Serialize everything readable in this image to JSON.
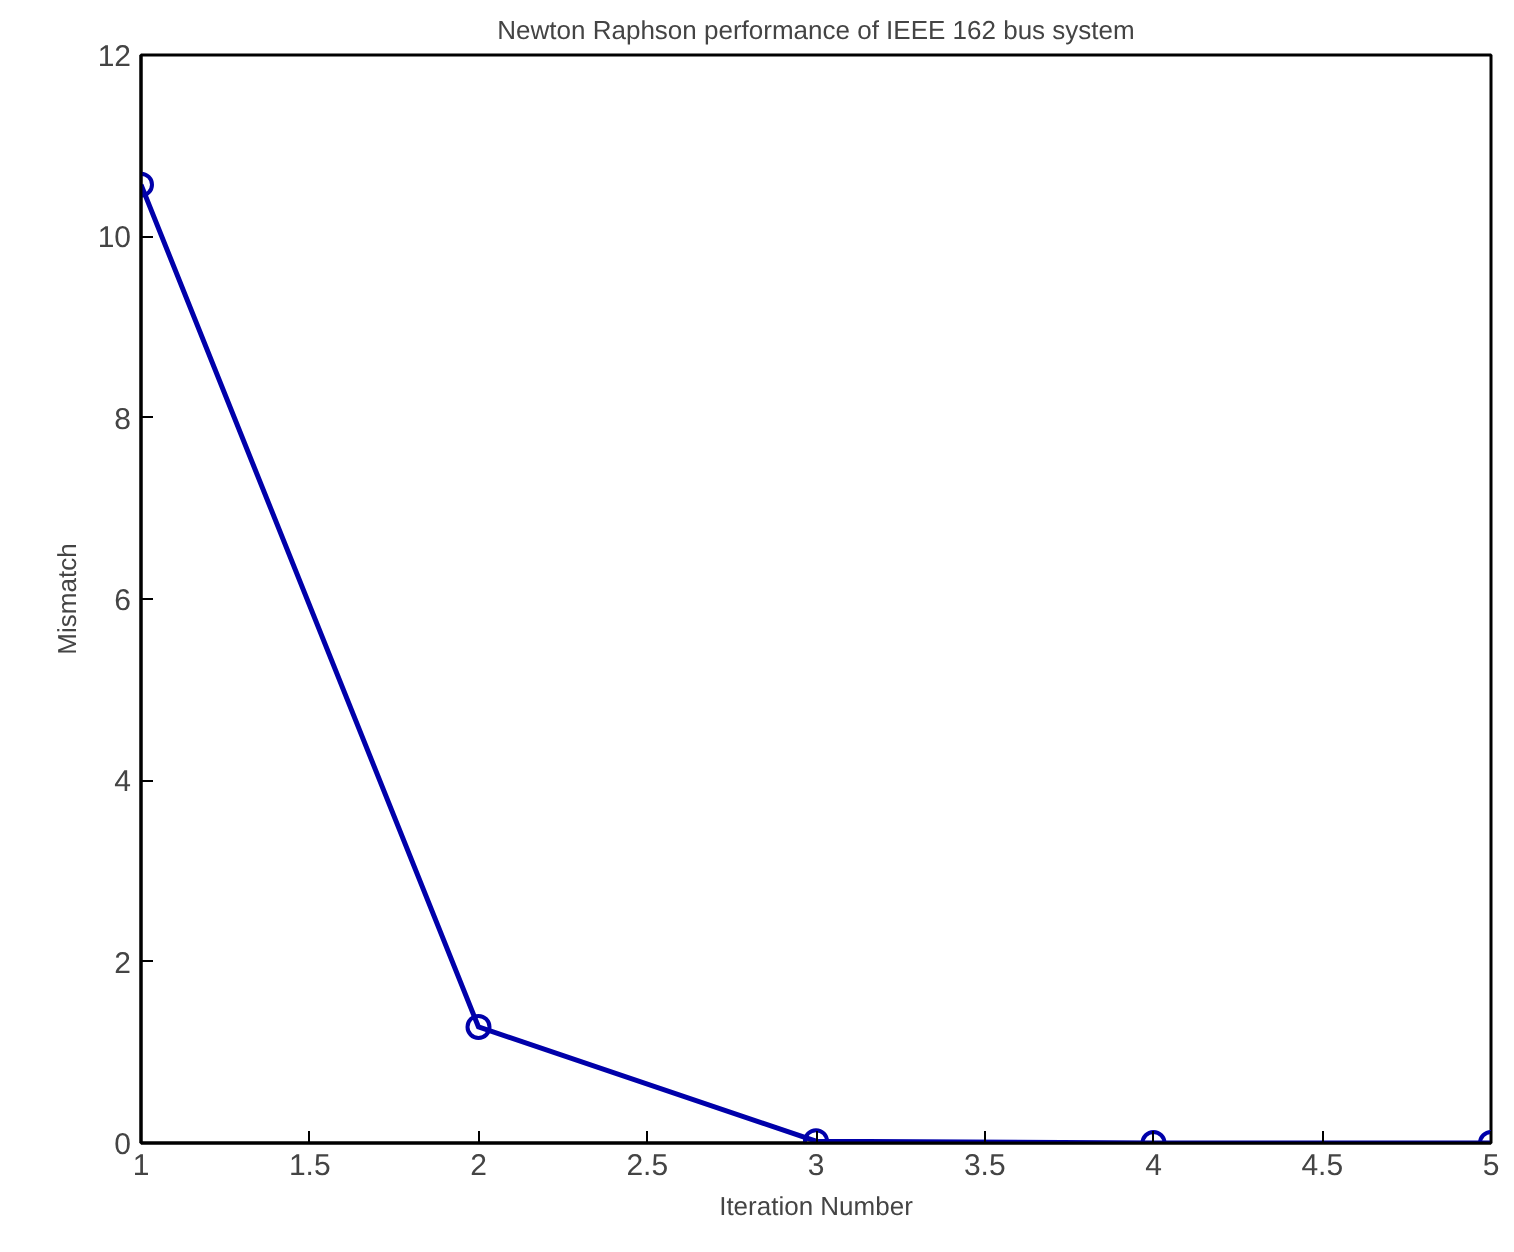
{
  "chart_data": {
    "type": "line",
    "title": "Newton Raphson performance of IEEE 162 bus system",
    "xlabel": "Iteration Number",
    "ylabel": "Mismatch",
    "x": [
      1,
      2,
      3,
      4,
      5
    ],
    "series": [
      {
        "color": "#0000aa",
        "values": [
          10.57,
          1.28,
          0.02,
          0,
          0
        ]
      }
    ],
    "xlim": [
      1,
      5
    ],
    "ylim": [
      0,
      12
    ],
    "xticks": [
      1,
      1.5,
      2,
      2.5,
      3,
      3.5,
      4,
      4.5,
      5
    ],
    "yticks": [
      0,
      2,
      4,
      6,
      8,
      10,
      12
    ],
    "grid": false,
    "marker": "circle",
    "line_style": "solid"
  }
}
